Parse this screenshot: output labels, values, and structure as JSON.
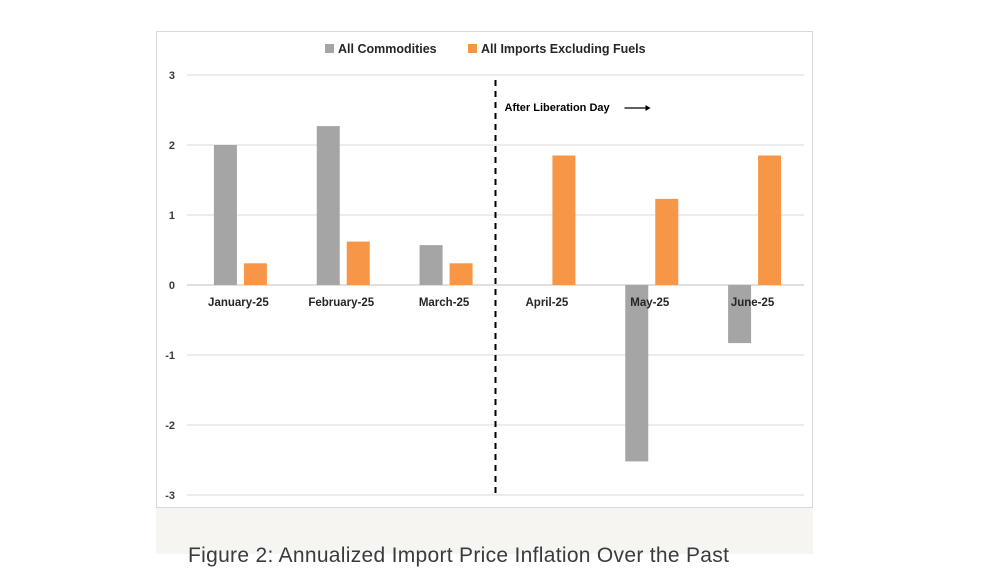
{
  "chart_data": {
    "type": "bar",
    "categories": [
      "January-25",
      "February-25",
      "March-25",
      "April-25",
      "May-25",
      "June-25"
    ],
    "series": [
      {
        "name": "All Commodities",
        "color": "#a5a5a5",
        "values": [
          2.0,
          2.27,
          0.57,
          0,
          -2.52,
          -0.83
        ]
      },
      {
        "name": "All Imports Excluding Fuels",
        "color": "#f79646",
        "values": [
          0.31,
          0.62,
          0.31,
          1.85,
          1.23,
          1.85
        ]
      }
    ],
    "ylim": [
      -3,
      3
    ],
    "yticks": [
      3,
      2,
      1,
      0,
      -1,
      -2,
      -3
    ],
    "grid": true,
    "legend_position": "top",
    "annotation": {
      "text": "After Liberation Day",
      "between_categories": [
        "March-25",
        "April-25"
      ]
    }
  },
  "caption": {
    "text": "Figure 2: Annualized Import Price Inflation Over the Past"
  }
}
